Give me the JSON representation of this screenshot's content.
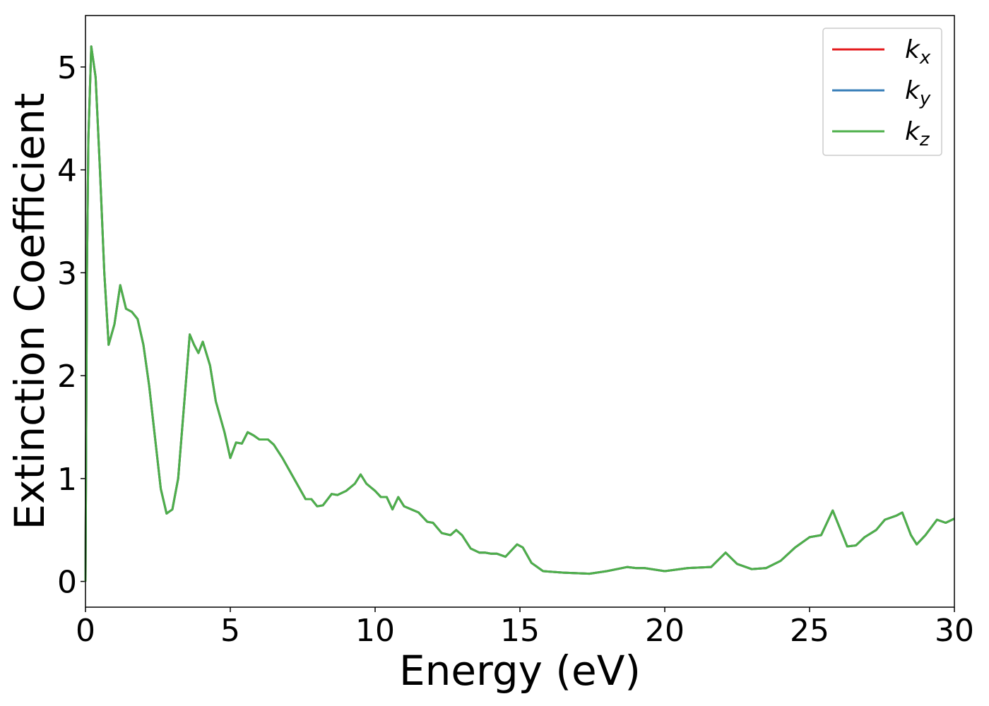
{
  "chart_data": {
    "type": "line",
    "xlabel": "Energy (eV)",
    "ylabel": "Extinction Coefficient",
    "x": [
      0,
      0.05,
      0.1,
      0.2,
      0.35,
      0.5,
      0.65,
      0.8,
      1.0,
      1.2,
      1.4,
      1.6,
      1.8,
      2.0,
      2.2,
      2.4,
      2.6,
      2.8,
      3.0,
      3.2,
      3.4,
      3.6,
      3.75,
      3.9,
      4.05,
      4.3,
      4.5,
      4.8,
      5.0,
      5.2,
      5.4,
      5.6,
      5.8,
      6.0,
      6.3,
      6.5,
      6.8,
      7.0,
      7.3,
      7.6,
      7.8,
      8.0,
      8.2,
      8.5,
      8.7,
      9.0,
      9.3,
      9.5,
      9.7,
      10.0,
      10.2,
      10.4,
      10.6,
      10.8,
      11.0,
      11.5,
      11.8,
      12.0,
      12.3,
      12.6,
      12.8,
      13.0,
      13.3,
      13.6,
      13.8,
      14.0,
      14.2,
      14.5,
      14.9,
      15.1,
      15.4,
      15.8,
      16.5,
      17.4,
      18.0,
      18.7,
      19.0,
      19.3,
      20.0,
      20.8,
      21.6,
      22.1,
      22.5,
      23.0,
      23.5,
      24.0,
      24.5,
      25.0,
      25.4,
      25.8,
      26.0,
      26.3,
      26.6,
      26.9,
      27.3,
      27.6,
      28.0,
      28.2,
      28.5,
      28.7,
      29.0,
      29.4,
      29.7,
      30.0
    ],
    "series": [
      {
        "name": "kx",
        "color": "#e41a1c",
        "values": [
          0,
          3.0,
          4.3,
          5.2,
          4.9,
          4.0,
          3.0,
          2.3,
          2.5,
          2.88,
          2.65,
          2.62,
          2.55,
          2.3,
          1.9,
          1.4,
          0.9,
          0.66,
          0.7,
          1.0,
          1.7,
          2.4,
          2.3,
          2.22,
          2.33,
          2.1,
          1.75,
          1.45,
          1.2,
          1.35,
          1.34,
          1.45,
          1.42,
          1.38,
          1.38,
          1.33,
          1.2,
          1.1,
          0.95,
          0.8,
          0.8,
          0.73,
          0.74,
          0.85,
          0.84,
          0.88,
          0.95,
          1.04,
          0.95,
          0.88,
          0.82,
          0.82,
          0.7,
          0.82,
          0.73,
          0.67,
          0.58,
          0.57,
          0.47,
          0.45,
          0.5,
          0.45,
          0.32,
          0.28,
          0.28,
          0.27,
          0.27,
          0.24,
          0.36,
          0.33,
          0.18,
          0.1,
          0.085,
          0.075,
          0.1,
          0.14,
          0.13,
          0.13,
          0.1,
          0.13,
          0.14,
          0.28,
          0.17,
          0.12,
          0.13,
          0.2,
          0.33,
          0.43,
          0.45,
          0.69,
          0.55,
          0.34,
          0.35,
          0.43,
          0.5,
          0.6,
          0.64,
          0.67,
          0.45,
          0.36,
          0.45,
          0.6,
          0.57,
          0.61
        ]
      },
      {
        "name": "ky",
        "color": "#377eb8",
        "values": [
          0,
          3.0,
          4.3,
          5.2,
          4.9,
          4.0,
          3.0,
          2.3,
          2.5,
          2.88,
          2.65,
          2.62,
          2.55,
          2.3,
          1.9,
          1.4,
          0.9,
          0.66,
          0.7,
          1.0,
          1.7,
          2.4,
          2.3,
          2.22,
          2.33,
          2.1,
          1.75,
          1.45,
          1.2,
          1.35,
          1.34,
          1.45,
          1.42,
          1.38,
          1.38,
          1.33,
          1.2,
          1.1,
          0.95,
          0.8,
          0.8,
          0.73,
          0.74,
          0.85,
          0.84,
          0.88,
          0.95,
          1.04,
          0.95,
          0.88,
          0.82,
          0.82,
          0.7,
          0.82,
          0.73,
          0.67,
          0.58,
          0.57,
          0.47,
          0.45,
          0.5,
          0.45,
          0.32,
          0.28,
          0.28,
          0.27,
          0.27,
          0.24,
          0.36,
          0.33,
          0.18,
          0.1,
          0.085,
          0.075,
          0.1,
          0.14,
          0.13,
          0.13,
          0.1,
          0.13,
          0.14,
          0.28,
          0.17,
          0.12,
          0.13,
          0.2,
          0.33,
          0.43,
          0.45,
          0.69,
          0.55,
          0.34,
          0.35,
          0.43,
          0.5,
          0.6,
          0.64,
          0.67,
          0.45,
          0.36,
          0.45,
          0.6,
          0.57,
          0.61
        ]
      },
      {
        "name": "kz",
        "color": "#4daf4a",
        "values": [
          0,
          3.0,
          4.3,
          5.2,
          4.9,
          4.0,
          3.0,
          2.3,
          2.5,
          2.88,
          2.65,
          2.62,
          2.55,
          2.3,
          1.9,
          1.4,
          0.9,
          0.66,
          0.7,
          1.0,
          1.7,
          2.4,
          2.3,
          2.22,
          2.33,
          2.1,
          1.75,
          1.45,
          1.2,
          1.35,
          1.34,
          1.45,
          1.42,
          1.38,
          1.38,
          1.33,
          1.2,
          1.1,
          0.95,
          0.8,
          0.8,
          0.73,
          0.74,
          0.85,
          0.84,
          0.88,
          0.95,
          1.04,
          0.95,
          0.88,
          0.82,
          0.82,
          0.7,
          0.82,
          0.73,
          0.67,
          0.58,
          0.57,
          0.47,
          0.45,
          0.5,
          0.45,
          0.32,
          0.28,
          0.28,
          0.27,
          0.27,
          0.24,
          0.36,
          0.33,
          0.18,
          0.1,
          0.085,
          0.075,
          0.1,
          0.14,
          0.13,
          0.13,
          0.1,
          0.13,
          0.14,
          0.28,
          0.17,
          0.12,
          0.13,
          0.2,
          0.33,
          0.43,
          0.45,
          0.69,
          0.55,
          0.34,
          0.35,
          0.43,
          0.5,
          0.6,
          0.64,
          0.67,
          0.45,
          0.36,
          0.45,
          0.6,
          0.57,
          0.61
        ]
      }
    ],
    "xlim": [
      0,
      30
    ],
    "ylim": [
      -0.25,
      5.5
    ],
    "xticks": [
      0,
      5,
      10,
      15,
      20,
      25,
      30
    ],
    "yticks": [
      0,
      1,
      2,
      3,
      4,
      5
    ],
    "grid": false,
    "legend": "upper right"
  }
}
